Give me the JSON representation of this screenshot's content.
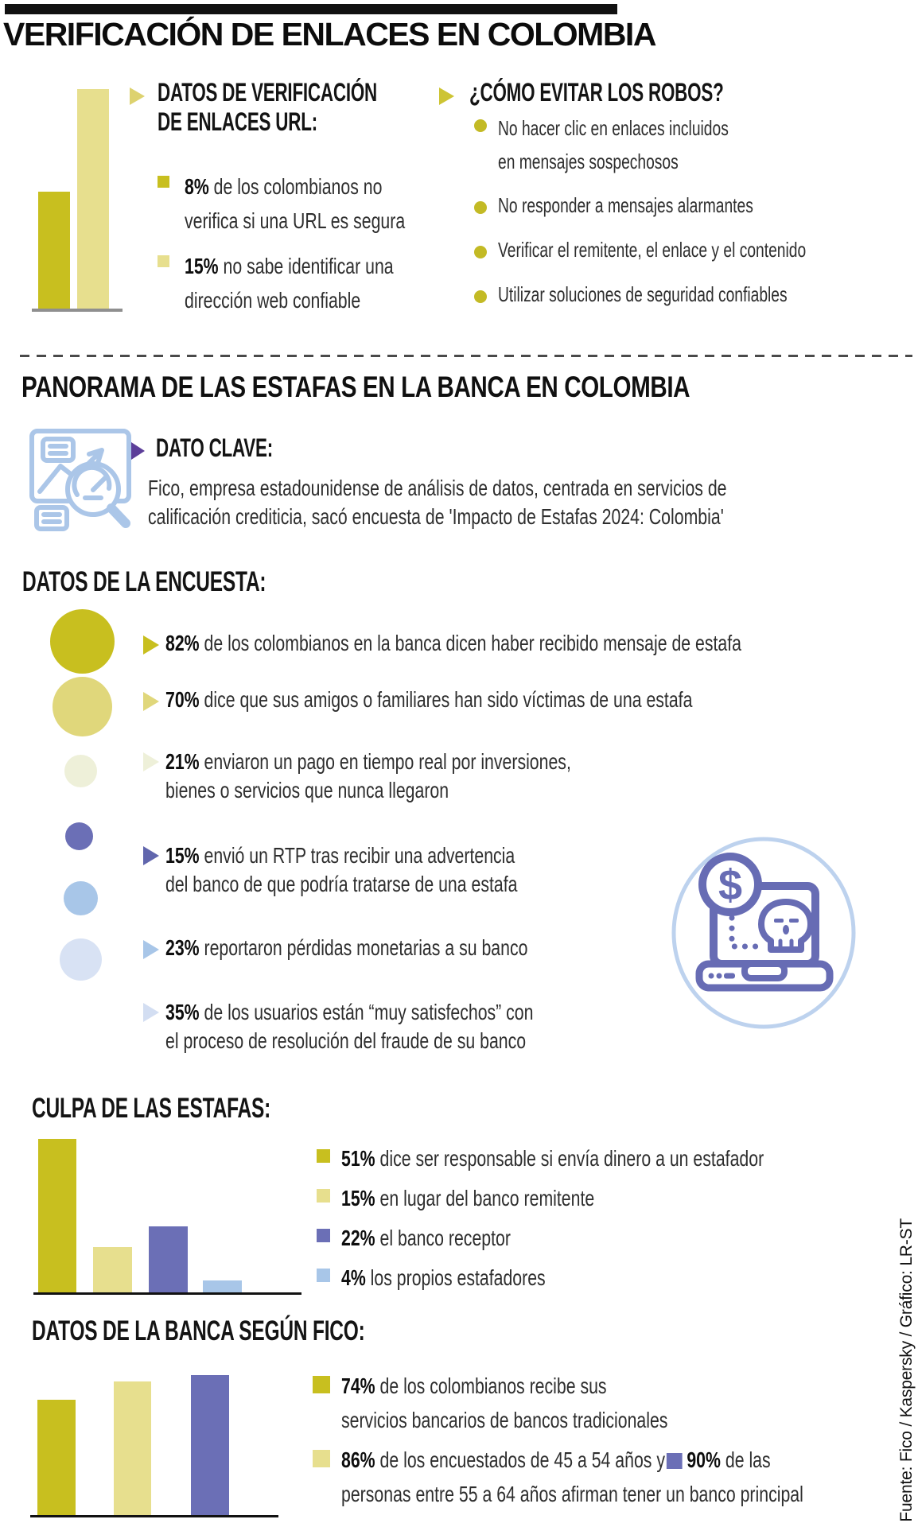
{
  "page": {
    "title": "VERIFICACIÓN DE ENLACES EN COLOMBIA"
  },
  "colors": {
    "dark_yellow": "#c8bf1f",
    "light_yellow": "#e7df8e",
    "pale_green": "#eef0d9",
    "purple": "#6b6fb6",
    "light_blue": "#a8c6e8",
    "pale_lavender": "#d8e2f4",
    "accent_purple_dark": "#5c3e99",
    "icon_blue": "#abc6e8",
    "icon_purple": "#676cb4"
  },
  "url_section": {
    "heading_line1": "DATOS DE VERIFICACIÓN",
    "heading_line2": "DE ENLACES URL:",
    "items": [
      {
        "pct": "8%",
        "line1": "de los colombianos no",
        "line2": "verifica si una URL es segura"
      },
      {
        "pct": "15%",
        "line1": "no sabe identificar una",
        "line2": "dirección web confiable"
      }
    ]
  },
  "robos_section": {
    "heading": "¿CÓMO EVITAR LOS ROBOS?",
    "items": [
      {
        "line1": "No hacer clic en enlaces incluidos",
        "line2": "en mensajes sospechosos"
      },
      {
        "line1": "No responder a mensajes alarmantes",
        "line2": ""
      },
      {
        "line1": "Verificar el remitente, el enlace y el contenido",
        "line2": ""
      },
      {
        "line1": "Utilizar soluciones de seguridad confiables",
        "line2": ""
      }
    ]
  },
  "panorama_section": {
    "title": "PANORAMA DE LAS ESTAFAS EN LA BANCA EN COLOMBIA",
    "dato_clave_heading": "DATO CLAVE:",
    "dato_clave_line1": "Fico, empresa estadounidense de análisis de datos, centrada en servicios de",
    "dato_clave_line2": "calificación crediticia, sacó encuesta de 'Impacto de Estafas 2024: Colombia'"
  },
  "encuesta_section": {
    "heading": "DATOS DE LA ENCUESTA:",
    "items": [
      {
        "pct": "82%",
        "value": 82,
        "line1": "de los colombianos en la banca dicen haber recibido mensaje de estafa",
        "line2": ""
      },
      {
        "pct": "70%",
        "value": 70,
        "line1": "dice que sus amigos o familiares han sido víctimas de una estafa",
        "line2": ""
      },
      {
        "pct": "21%",
        "value": 21,
        "line1": "enviaron un pago en tiempo real por inversiones,",
        "line2": "bienes o servicios que nunca llegaron"
      },
      {
        "pct": "15%",
        "value": 15,
        "line1": "envió un RTP tras recibir una advertencia",
        "line2": "del banco de que podría tratarse de una estafa"
      },
      {
        "pct": "23%",
        "value": 23,
        "line1": "reportaron pérdidas monetarias a su banco",
        "line2": ""
      },
      {
        "pct": "35%",
        "value": 35,
        "line1": "de los usuarios están “muy satisfechos” con",
        "line2": "el proceso de resolución del fraude de su banco"
      }
    ]
  },
  "culpa_section": {
    "heading": "CULPA DE LAS ESTAFAS:",
    "legend": [
      {
        "pct": "51%",
        "text": "dice ser responsable si envía dinero a un estafador"
      },
      {
        "pct": "15%",
        "text": "en lugar del banco remitente"
      },
      {
        "pct": "22%",
        "text": "el banco receptor"
      },
      {
        "pct": "4%",
        "text": "los propios estafadores"
      }
    ]
  },
  "fico_section": {
    "heading": "DATOS DE LA BANCA SEGÚN FICO:",
    "legend1": {
      "pct": "74%",
      "line1": "de los colombianos recibe sus",
      "line2": "servicios bancarios de bancos tradicionales"
    },
    "legend2": {
      "pct": "86%",
      "text": "de los encuestados de 45 a 54 años y",
      "pct2": "90%",
      "text2": "de las",
      "line2": "personas entre 55 a 64 años afirman tener un banco principal"
    }
  },
  "source": "Fuente: Fico / Kaspersky / Gráfico: LR-ST",
  "chart_data": [
    {
      "type": "bar",
      "title": "DATOS DE VERIFICACIÓN DE ENLACES URL",
      "categories": [
        "no verifica si una URL es segura",
        "no sabe identificar una dirección web confiable"
      ],
      "values": [
        8,
        15
      ],
      "unit": "%",
      "colors": [
        "#c8bf1f",
        "#e7df8e"
      ],
      "ylim": [
        0,
        15
      ],
      "grid": false
    },
    {
      "type": "bubble",
      "title": "DATOS DE LA ENCUESTA",
      "categories": [
        "recibido mensaje de estafa",
        "amigos o familiares víctimas de una estafa",
        "pago en tiempo real por bienes que nunca llegaron",
        "envió un RTP tras advertencia del banco",
        "reportaron pérdidas monetarias a su banco",
        "muy satisfechos con la resolución del fraude"
      ],
      "values": [
        82,
        70,
        21,
        15,
        23,
        35
      ],
      "unit": "%",
      "colors": [
        "#c8bf1f",
        "#e0d77b",
        "#eef0d9",
        "#6b6fb6",
        "#a8c6e8",
        "#d8e2f4"
      ]
    },
    {
      "type": "bar",
      "title": "CULPA DE LAS ESTAFAS",
      "categories": [
        "dice ser responsable si envía dinero a un estafador",
        "en lugar del banco remitente",
        "el banco receptor",
        "los propios estafadores"
      ],
      "values": [
        51,
        15,
        22,
        4
      ],
      "unit": "%",
      "colors": [
        "#c8bf1f",
        "#e7df8e",
        "#6b6fb6",
        "#a8c6e8"
      ],
      "ylim": [
        0,
        51
      ],
      "grid": false
    },
    {
      "type": "bar",
      "title": "DATOS DE LA BANCA SEGÚN FICO",
      "categories": [
        "recibe servicios de bancos tradicionales",
        "encuestados de 45 a 54 años con banco principal",
        "personas de 55 a 64 años con banco principal"
      ],
      "values": [
        74,
        86,
        90
      ],
      "unit": "%",
      "colors": [
        "#c8bf1f",
        "#e7df8e",
        "#6b6fb6"
      ],
      "ylim": [
        0,
        90
      ],
      "grid": false
    }
  ]
}
